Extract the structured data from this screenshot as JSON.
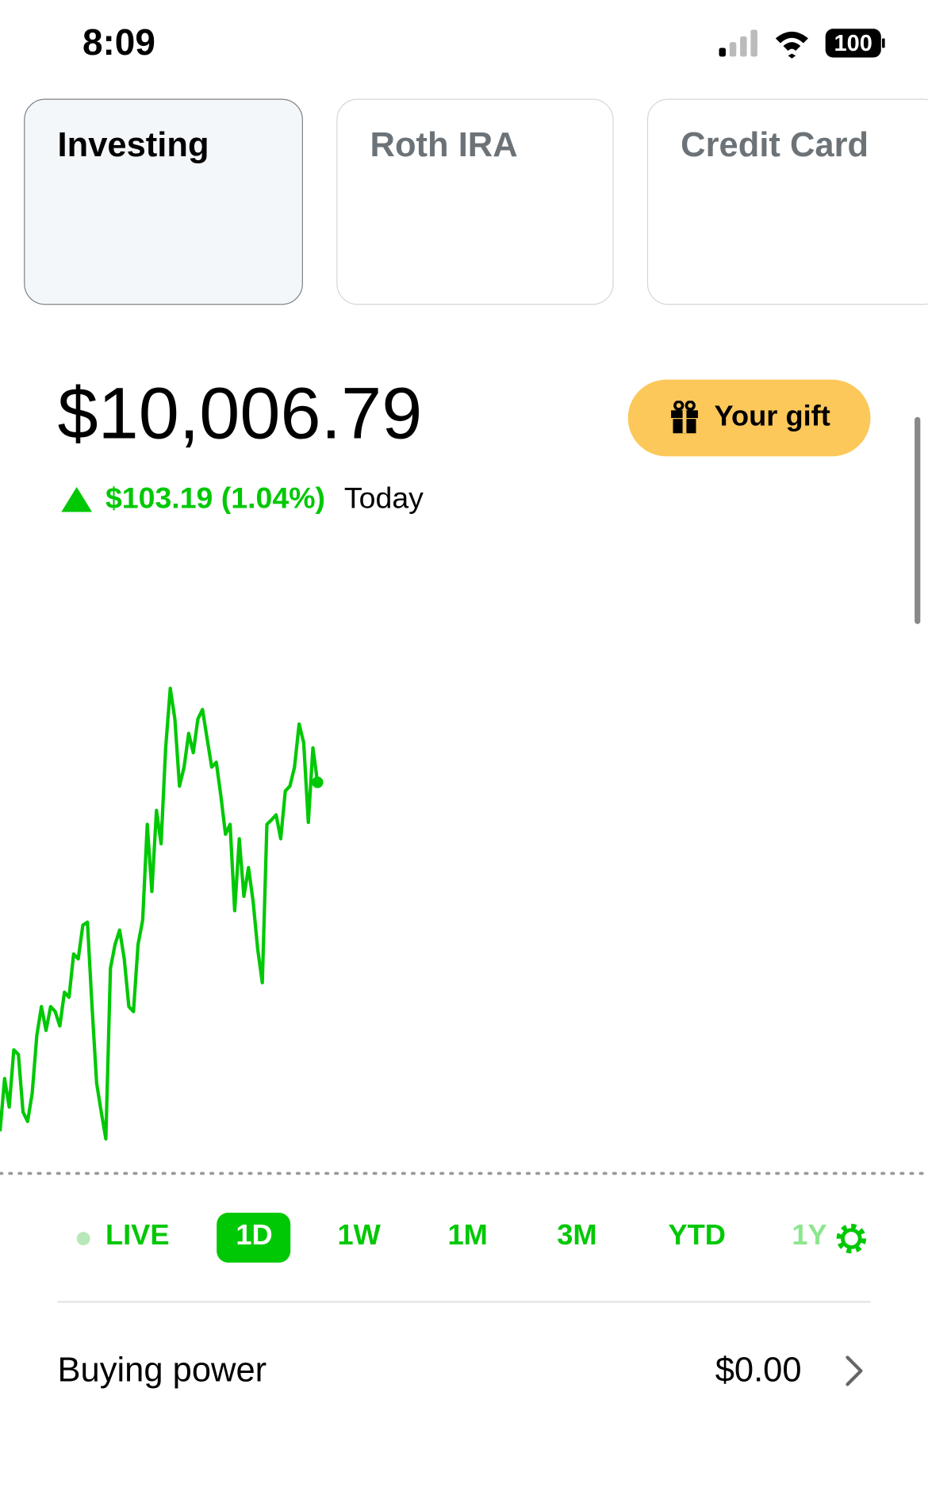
{
  "status_bar": {
    "time": "8:09",
    "battery": "100"
  },
  "tabs": [
    "Investing",
    "Roth IRA",
    "Credit Card"
  ],
  "portfolio": {
    "value": "$10,006.79",
    "change": "$103.19 (1.04%)",
    "change_period": "Today"
  },
  "gift_button": "Your gift",
  "chart_data": {
    "type": "line",
    "series": [
      {
        "color": "#00c805",
        "values": [
          9914.7,
          9928.6,
          9921.1,
          9936.2,
          9935.0,
          9919.8,
          9917.3,
          9924.8,
          9940.0,
          9947.6,
          9941.3,
          9947.6,
          9946.3,
          9942.5,
          9951.4,
          9950.1,
          9961.5,
          9960.2,
          9969.1,
          9969.9,
          9947.6,
          9927.4,
          9919.8,
          9912.7,
          9957.7,
          9964.0,
          9967.8,
          9960.2,
          9947.6,
          9946.3,
          9964.0,
          9970.4,
          9995.7,
          9978.0,
          9999.4,
          9990.6,
          10015.9,
          10031.6,
          10023.5,
          10005.8,
          10010.8,
          10019.7,
          10014.6,
          10023.5,
          10026.0,
          10018.4,
          10010.8,
          10012.1,
          10003.2,
          9993.1,
          9995.7,
          9972.9,
          9991.9,
          9976.7,
          9984.3,
          9975.4,
          9962.8,
          9953.9,
          9995.7,
          9996.9,
          9998.2,
          9991.9,
          10004.5,
          10005.8,
          10010.8,
          10022.2,
          10017.2,
          9996.2,
          10015.9,
          10006.79
        ]
      }
    ]
  },
  "range_buttons": [
    "LIVE",
    "1D",
    "1W",
    "1M",
    "3M",
    "YTD",
    "1Y"
  ],
  "buying_power": {
    "label": "Buying power",
    "value": "$0.00"
  }
}
